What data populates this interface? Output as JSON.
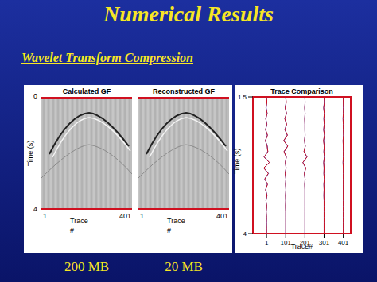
{
  "title": "Numerical Results",
  "subtitle": "Wavelet Transform Compression",
  "images": [
    {
      "title": "Calculated GF",
      "y_label": "Time (s)",
      "y_ticks": [
        0,
        4
      ],
      "x_label": "Trace #",
      "x_ticks": [
        1,
        401
      ],
      "caption": "200 MB"
    },
    {
      "title": "Reconstructed GF",
      "x_label": "Trace #",
      "x_ticks": [
        1,
        401
      ],
      "caption": "20 MB"
    }
  ],
  "chart_data": {
    "type": "line",
    "title": "Trace Comparison",
    "x_label": "Trace#",
    "y_label": "Time (s)",
    "xlim": [
      -70,
      440
    ],
    "xticks": [
      1,
      101,
      201,
      301,
      401
    ],
    "ylim": [
      1.5,
      4
    ],
    "yticks": [
      1.5,
      4
    ],
    "y": [
      1.5,
      1.6,
      1.7,
      1.8,
      1.9,
      2.0,
      2.1,
      2.2,
      2.3,
      2.4,
      2.5,
      2.6,
      2.7,
      2.8,
      2.9,
      3.0,
      3.1,
      3.2,
      3.3,
      3.4,
      3.5,
      3.6,
      3.7,
      3.8,
      3.9,
      4.0
    ],
    "series": [
      {
        "color": "#3344cc",
        "x": [
          1,
          2,
          -1,
          4,
          -3,
          3,
          -4,
          5,
          -5,
          5,
          7,
          -11,
          15,
          -13,
          11,
          -8,
          5,
          -4,
          4,
          -2,
          2,
          -1,
          1,
          1,
          1,
          1
        ]
      },
      {
        "color": "#cc1122",
        "x": [
          1,
          3,
          -2,
          4,
          -3,
          2,
          -4,
          6,
          -5,
          4,
          8,
          -12,
          16,
          -14,
          10,
          -8,
          6,
          -4,
          3,
          -2,
          2,
          -1,
          1,
          0,
          1,
          1
        ]
      },
      {
        "color": "#3344cc",
        "x": [
          101,
          103,
          98,
          105,
          97,
          105,
          97,
          109,
          91,
          111,
          93,
          104,
          99,
          103,
          98,
          102,
          100,
          102,
          100,
          101,
          100,
          101,
          101,
          101,
          101,
          101
        ]
      },
      {
        "color": "#cc1122",
        "x": [
          101,
          104,
          98,
          105,
          96,
          106,
          97,
          110,
          90,
          112,
          92,
          104,
          99,
          103,
          98,
          102,
          100,
          102,
          100,
          101,
          100,
          101,
          101,
          101,
          101,
          101
        ]
      },
      {
        "color": "#3344cc",
        "x": [
          201,
          202,
          200,
          202,
          200,
          201,
          201,
          202,
          199,
          203,
          197,
          211,
          191,
          205,
          198,
          202,
          200,
          201,
          201,
          201,
          201,
          201,
          201,
          201,
          201,
          201
        ]
      },
      {
        "color": "#cc1122",
        "x": [
          201,
          202,
          200,
          202,
          200,
          201,
          201,
          202,
          199,
          203,
          196,
          212,
          190,
          206,
          198,
          202,
          200,
          201,
          201,
          201,
          201,
          201,
          201,
          201,
          201,
          201
        ]
      },
      {
        "color": "#3344cc",
        "x": [
          301,
          302,
          299,
          302,
          300,
          302,
          299,
          303,
          299,
          302,
          300,
          302,
          299,
          301,
          300,
          302,
          300,
          301,
          300,
          301,
          301,
          301,
          301,
          301,
          301,
          301
        ]
      },
      {
        "color": "#cc1122",
        "x": [
          301,
          303,
          299,
          302,
          300,
          302,
          299,
          303,
          298,
          302,
          300,
          303,
          299,
          301,
          300,
          302,
          300,
          301,
          300,
          301,
          301,
          301,
          301,
          301,
          301,
          301
        ]
      },
      {
        "color": "#3344cc",
        "x": [
          401,
          401,
          401,
          401,
          400,
          401,
          401,
          402,
          400,
          401,
          401,
          401,
          400,
          401,
          401,
          401,
          401,
          401,
          401,
          401,
          401,
          401,
          401,
          401,
          401,
          401
        ]
      },
      {
        "color": "#cc1122",
        "x": [
          401,
          401,
          402,
          401,
          400,
          401,
          401,
          402,
          400,
          401,
          401,
          401,
          400,
          401,
          401,
          401,
          401,
          401,
          401,
          401,
          401,
          401,
          401,
          401,
          401,
          401
        ]
      }
    ]
  }
}
